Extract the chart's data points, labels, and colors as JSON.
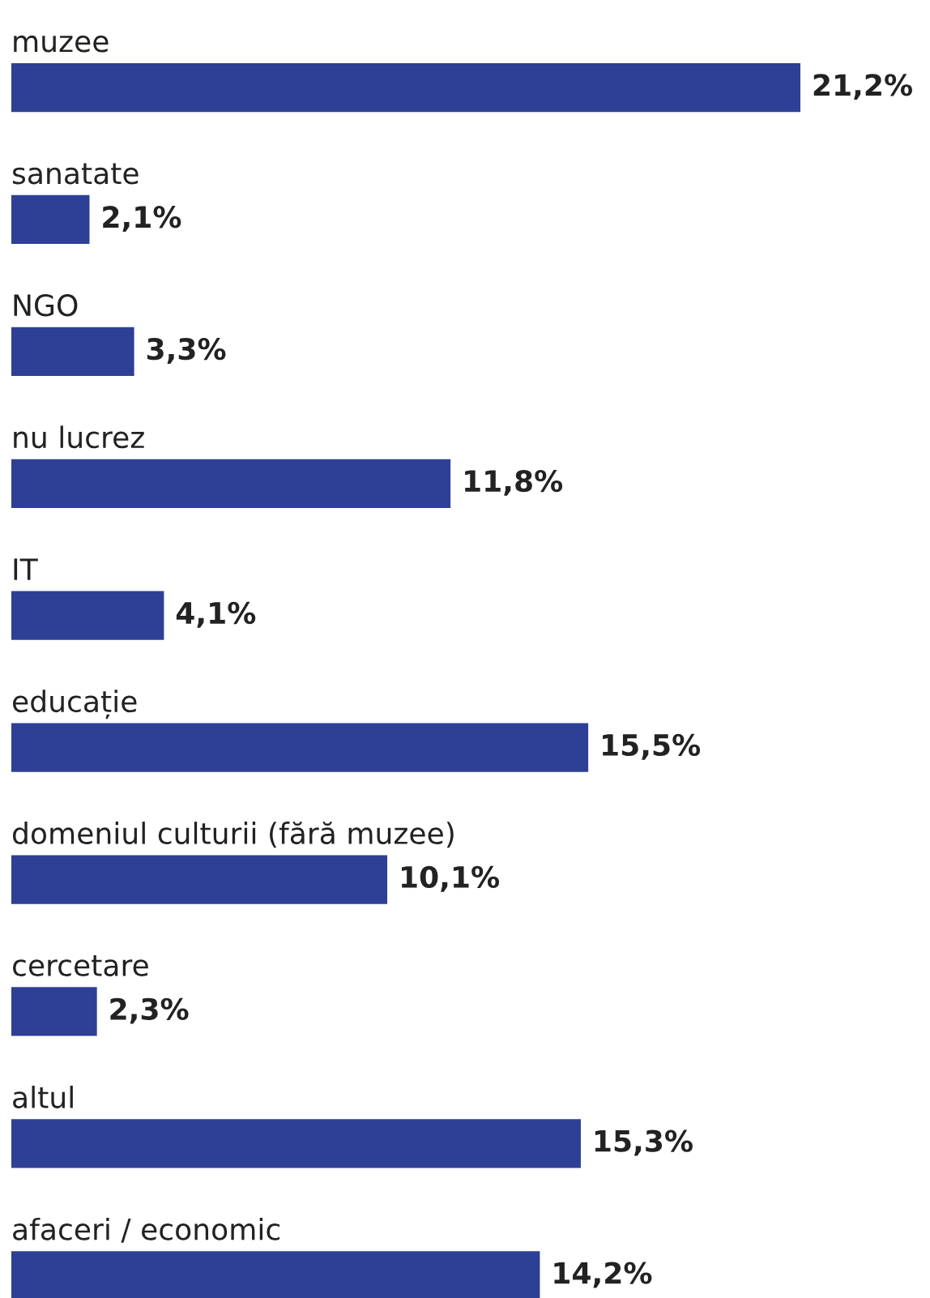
{
  "chart_data": {
    "type": "bar",
    "orientation": "horizontal",
    "color": "#2e3f96",
    "categories": [
      "muzee",
      "sanatate",
      "NGO",
      "nu lucrez",
      "IT",
      "educație",
      "domeniul culturii (fără muzee)",
      "cercetare",
      "altul",
      "afaceri / economic"
    ],
    "values": [
      21.2,
      2.1,
      3.3,
      11.8,
      4.1,
      15.5,
      10.1,
      2.3,
      15.3,
      14.2
    ],
    "value_labels": [
      "21,2%",
      "2,1%",
      "3,3%",
      "11,8%",
      "4,1%",
      "15,5%",
      "10,1%",
      "2,3%",
      "15,3%",
      "14,2%"
    ]
  }
}
